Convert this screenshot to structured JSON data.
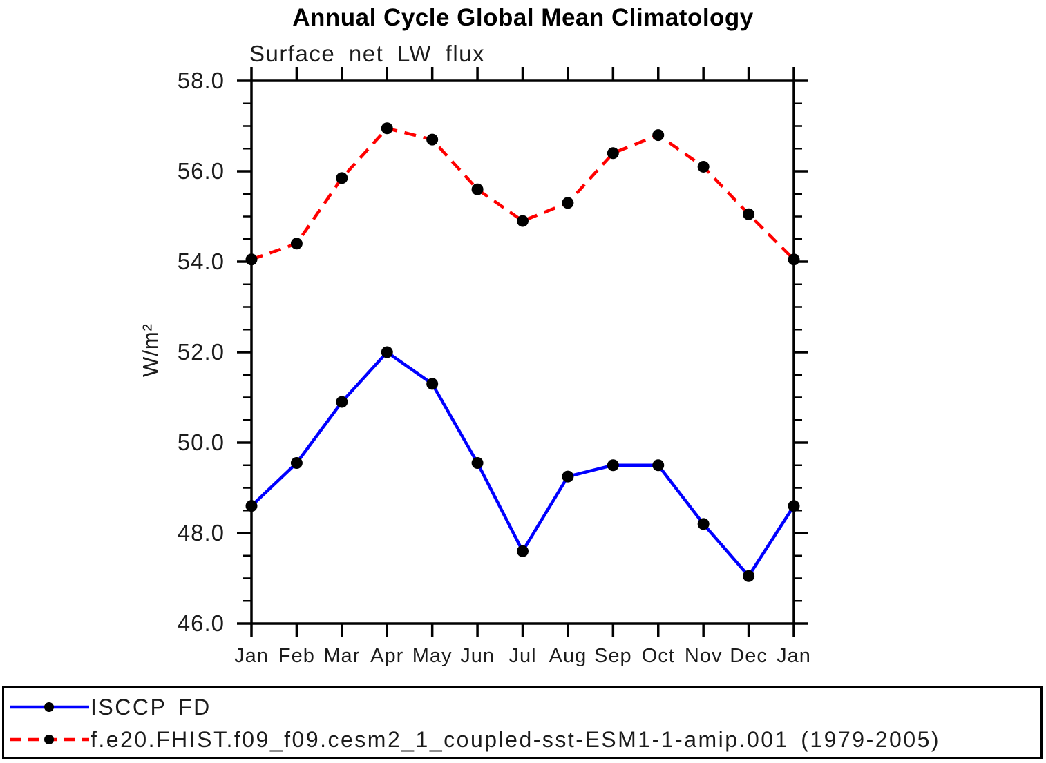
{
  "chart_data": {
    "type": "line",
    "title": "Annual Cycle Global Mean Climatology",
    "subtitle": "Surface net LW flux",
    "ylabel": "W/m²",
    "xlabel": "",
    "categories": [
      "Jan",
      "Feb",
      "Mar",
      "Apr",
      "May",
      "Jun",
      "Jul",
      "Aug",
      "Sep",
      "Oct",
      "Nov",
      "Dec",
      "Jan"
    ],
    "ylim": [
      46.0,
      58.0
    ],
    "ytick_major_step": 2.0,
    "ytick_minor_step": 0.5,
    "ytick_labels": [
      "46.0",
      "48.0",
      "50.0",
      "52.0",
      "54.0",
      "56.0",
      "58.0"
    ],
    "grid": false,
    "legend_position": "bottom-box",
    "axis_color": "#000000",
    "marker_shape": "filled-circle",
    "series": [
      {
        "name": "ISCCP FD",
        "color": "#0000ff",
        "line_style": "solid",
        "marker_color": "#000000",
        "values": [
          48.6,
          49.55,
          50.9,
          52.0,
          51.3,
          49.55,
          47.6,
          49.25,
          49.5,
          49.5,
          48.2,
          47.05,
          48.6
        ]
      },
      {
        "name": "f.e20.FHIST.f09_f09.cesm2_1_coupled-sst-ESM1-1-amip.001 (1979-2005)",
        "color": "#ff0000",
        "line_style": "dashed",
        "marker_color": "#000000",
        "values": [
          54.05,
          54.4,
          55.85,
          56.95,
          56.7,
          55.6,
          54.9,
          55.3,
          56.4,
          56.8,
          56.1,
          55.05,
          54.05
        ]
      }
    ]
  }
}
